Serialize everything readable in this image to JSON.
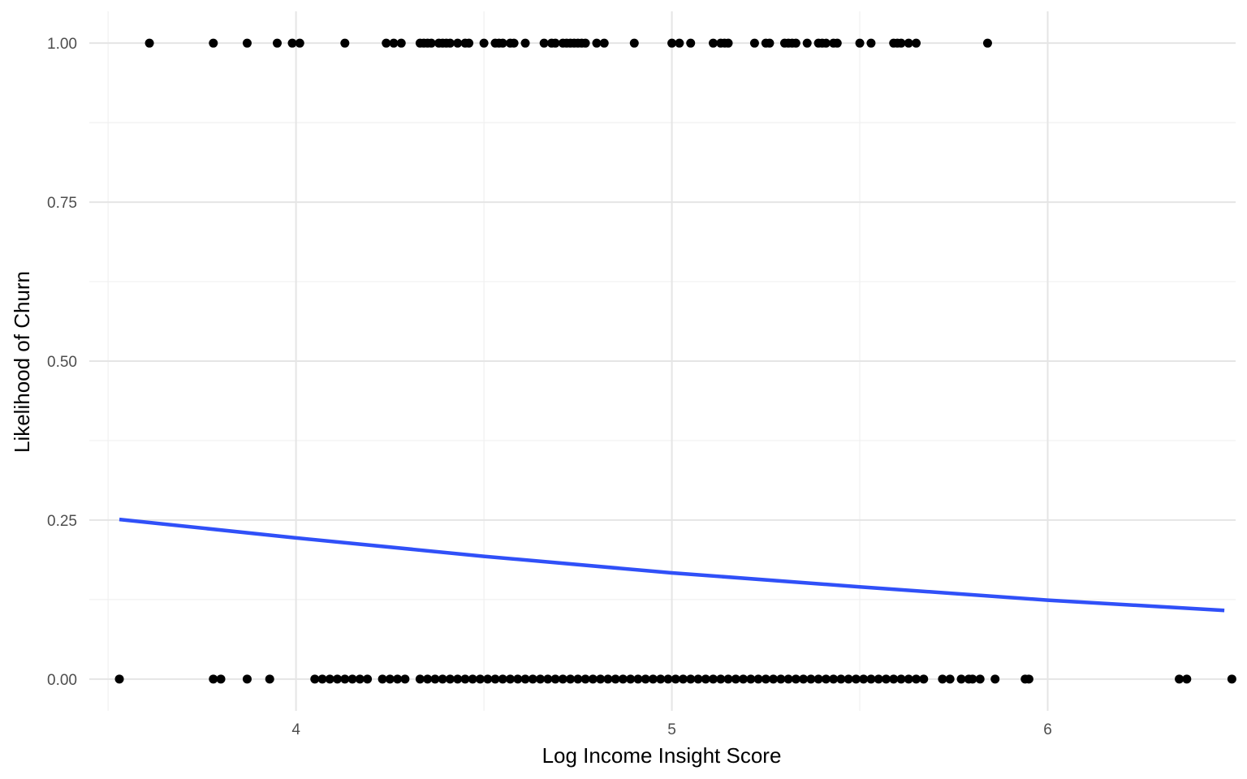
{
  "chart_data": {
    "type": "scatter",
    "title": "",
    "xlabel": "Log Income Insight Score",
    "ylabel": "Likelihood of Churn",
    "xlim": [
      3.45,
      6.5
    ],
    "ylim": [
      -0.05,
      1.05
    ],
    "x_ticks": [
      4,
      5,
      6
    ],
    "x_tick_labels": [
      "4",
      "5",
      "6"
    ],
    "y_ticks": [
      0,
      0.25,
      0.5,
      0.75,
      1.0
    ],
    "y_tick_labels": [
      "0.00",
      "0.25",
      "0.50",
      "0.75",
      "1.00"
    ],
    "grid": true,
    "legend": "none",
    "series": [
      {
        "type": "scatter",
        "color": "#000000",
        "points_y1_x": [
          3.61,
          3.78,
          3.87,
          3.95,
          3.99,
          4.01,
          4.13,
          4.24,
          4.26,
          4.28,
          4.33,
          4.34,
          4.35,
          4.36,
          4.38,
          4.39,
          4.4,
          4.41,
          4.43,
          4.45,
          4.46,
          4.5,
          4.53,
          4.54,
          4.55,
          4.57,
          4.58,
          4.61,
          4.66,
          4.68,
          4.69,
          4.71,
          4.72,
          4.73,
          4.74,
          4.75,
          4.76,
          4.77,
          4.8,
          4.82,
          4.9,
          5.0,
          5.02,
          5.05,
          5.11,
          5.13,
          5.14,
          5.15,
          5.22,
          5.25,
          5.26,
          5.3,
          5.31,
          5.32,
          5.33,
          5.36,
          5.39,
          5.4,
          5.41,
          5.43,
          5.44,
          5.5,
          5.53,
          5.59,
          5.6,
          5.61,
          5.63,
          5.65,
          5.84
        ],
        "points_y0_x": [
          3.53,
          3.78,
          3.8,
          3.87,
          3.93,
          4.05,
          4.07,
          4.09,
          4.11,
          4.13,
          4.15,
          4.17,
          4.19,
          4.23,
          4.25,
          4.27,
          4.29,
          4.33,
          4.35,
          4.37,
          4.39,
          4.41,
          4.43,
          4.45,
          4.47,
          4.49,
          4.51,
          4.53,
          4.55,
          4.57,
          4.59,
          4.61,
          4.63,
          4.65,
          4.67,
          4.69,
          4.71,
          4.73,
          4.75,
          4.77,
          4.79,
          4.81,
          4.83,
          4.85,
          4.87,
          4.89,
          4.91,
          4.93,
          4.95,
          4.97,
          4.99,
          5.01,
          5.03,
          5.05,
          5.07,
          5.09,
          5.11,
          5.13,
          5.15,
          5.17,
          5.19,
          5.21,
          5.23,
          5.25,
          5.27,
          5.29,
          5.31,
          5.33,
          5.35,
          5.37,
          5.39,
          5.41,
          5.43,
          5.45,
          5.47,
          5.49,
          5.51,
          5.53,
          5.55,
          5.57,
          5.59,
          5.61,
          5.63,
          5.65,
          5.67,
          5.72,
          5.74,
          5.77,
          5.79,
          5.8,
          5.82,
          5.86,
          5.94,
          5.95,
          6.35,
          6.37,
          6.49
        ]
      },
      {
        "type": "line",
        "color": "#3050f8",
        "x": [
          3.53,
          4.0,
          4.5,
          5.0,
          5.5,
          6.0,
          6.47
        ],
        "y": [
          0.251,
          0.222,
          0.193,
          0.167,
          0.145,
          0.124,
          0.108
        ]
      }
    ]
  }
}
